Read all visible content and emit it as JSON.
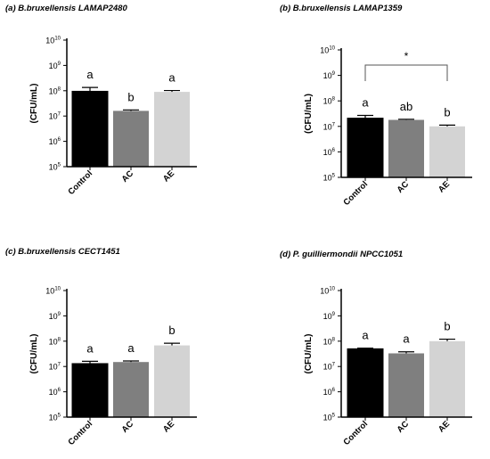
{
  "chart_data": [
    {
      "type": "bar",
      "title": "(a) B.bruxellensis LAMAP2480",
      "ylabel": "(CFU/mL)",
      "yscale": "log",
      "ylim": [
        100000,
        10000000000
      ],
      "yticks": [
        "10",
        "10",
        "10",
        "10",
        "10",
        "10"
      ],
      "ytick_exps": [
        "5",
        "6",
        "7",
        "8",
        "9",
        "10"
      ],
      "categories": [
        "Control",
        "AC",
        "AE"
      ],
      "values": [
        95000000,
        16000000,
        90000000
      ],
      "errors": [
        40000000,
        1500000,
        12000000
      ],
      "labels": [
        "a",
        "b",
        "a"
      ],
      "colors": [
        "#000000",
        "#7f7f7f",
        "#d3d3d3"
      ]
    },
    {
      "type": "bar",
      "title": "(b) B.bruxellensis LAMAP1359",
      "ylabel": "(CFU/mL)",
      "yscale": "log",
      "ylim": [
        100000,
        10000000000
      ],
      "yticks": [
        "10",
        "10",
        "10",
        "10",
        "10",
        "10"
      ],
      "ytick_exps": [
        "5",
        "6",
        "7",
        "8",
        "9",
        "10"
      ],
      "categories": [
        "Control",
        "AC",
        "AE"
      ],
      "values": [
        21000000,
        18000000,
        10000000
      ],
      "errors": [
        6000000,
        1000000,
        1200000
      ],
      "labels": [
        "a",
        "ab",
        "b"
      ],
      "colors": [
        "#000000",
        "#7f7f7f",
        "#d3d3d3"
      ],
      "bracket": {
        "from": 0,
        "to": 2,
        "label": "*"
      }
    },
    {
      "type": "bar",
      "title": "(c) B.bruxellensis CECT1451",
      "ylabel": "(CFU/mL)",
      "yscale": "log",
      "ylim": [
        100000,
        10000000000
      ],
      "yticks": [
        "10",
        "10",
        "10",
        "10",
        "10",
        "10"
      ],
      "ytick_exps": [
        "5",
        "6",
        "7",
        "8",
        "9",
        "10"
      ],
      "categories": [
        "Control",
        "AC",
        "AE"
      ],
      "values": [
        13000000,
        15000000,
        68000000
      ],
      "errors": [
        3000000,
        1500000,
        15000000
      ],
      "labels": [
        "a",
        "a",
        "b"
      ],
      "colors": [
        "#000000",
        "#7f7f7f",
        "#d3d3d3"
      ]
    },
    {
      "type": "bar",
      "title": "(d) P. guilliermondii NPCC1051",
      "ylabel": "(CFU/mL)",
      "yscale": "log",
      "ylim": [
        100000,
        10000000000
      ],
      "yticks": [
        "10",
        "10",
        "10",
        "10",
        "10",
        "10"
      ],
      "ytick_exps": [
        "5",
        "6",
        "7",
        "8",
        "9",
        "10"
      ],
      "categories": [
        "Control",
        "AC",
        "AE"
      ],
      "values": [
        50000000,
        33000000,
        100000000
      ],
      "errors": [
        3000000,
        5000000,
        20000000
      ],
      "labels": [
        "a",
        "a",
        "b"
      ],
      "colors": [
        "#000000",
        "#7f7f7f",
        "#d3d3d3"
      ]
    }
  ]
}
